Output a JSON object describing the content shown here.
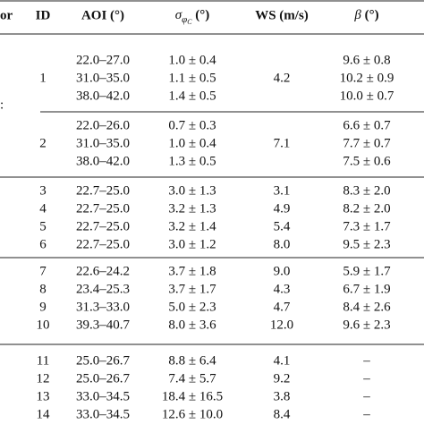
{
  "header": {
    "cut_column": "or",
    "id": "ID",
    "aoi": "AOI (°)",
    "sigma": {
      "symbol": "σ",
      "sub": "φ",
      "subsub": "C",
      "unit": " (°)"
    },
    "ws": "WS (m/s)",
    "beta": {
      "symbol": "β",
      "unit": " (°)"
    }
  },
  "cut_mark": ":",
  "merged_groups": [
    {
      "id": "1",
      "ws": "4.2",
      "rows": [
        [
          "22.0–27.0",
          "1.0 ± 0.4",
          "9.6 ± 0.8"
        ],
        [
          "31.0–35.0",
          "1.1 ± 0.5",
          "10.2 ± 0.9"
        ],
        [
          "38.0–42.0",
          "1.4 ± 0.5",
          "10.0 ± 0.7"
        ]
      ]
    },
    {
      "id": "2",
      "ws": "7.1",
      "rows": [
        [
          "22.0–26.0",
          "0.7 ± 0.3",
          "6.6 ± 0.7"
        ],
        [
          "31.0–35.0",
          "1.0 ± 0.4",
          "7.7 ± 0.7"
        ],
        [
          "38.0–42.0",
          "1.3 ± 0.5",
          "7.5 ± 0.6"
        ]
      ]
    }
  ],
  "groups": [
    [
      [
        "3",
        "22.7–25.0",
        "3.0 ± 1.3",
        "3.1",
        "8.3 ± 2.0"
      ],
      [
        "4",
        "22.7–25.0",
        "3.2 ± 1.3",
        "4.9",
        "8.2 ± 2.0"
      ],
      [
        "5",
        "22.7–25.0",
        "3.2 ± 1.4",
        "5.4",
        "7.3 ± 1.7"
      ],
      [
        "6",
        "22.7–25.0",
        "3.0 ± 1.2",
        "8.0",
        "9.5 ± 2.3"
      ]
    ],
    [
      [
        "7",
        "22.6–24.2",
        "3.7 ± 1.8",
        "9.0",
        "5.9 ± 1.7"
      ],
      [
        "8",
        "23.4–25.3",
        "3.7 ± 1.7",
        "4.3",
        "6.7 ± 1.9"
      ],
      [
        "9",
        "31.3–33.0",
        "5.0 ± 2.3",
        "4.7",
        "8.4 ± 2.6"
      ],
      [
        "10",
        "39.3–40.7",
        "8.0 ± 3.6",
        "12.0",
        "9.6 ± 2.3"
      ]
    ],
    [
      [
        "11",
        "25.0–26.7",
        "8.8 ± 6.4",
        "4.1",
        "–"
      ],
      [
        "12",
        "25.0–26.7",
        "7.4 ± 5.7",
        "9.2",
        "–"
      ],
      [
        "13",
        "33.0–34.5",
        "18.4 ± 16.5",
        "3.8",
        "–"
      ],
      [
        "14",
        "33.0–34.5",
        "12.6 ± 10.0",
        "8.4",
        "–"
      ]
    ]
  ]
}
